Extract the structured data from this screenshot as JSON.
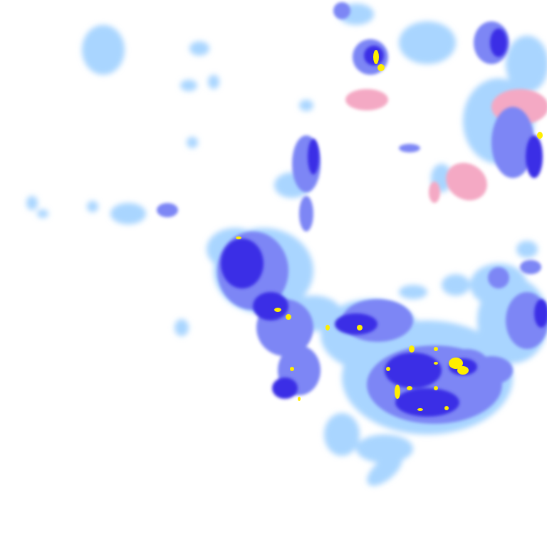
{
  "map": {
    "type": "precipitation-radar-tile",
    "colors": {
      "light_rain": "#a9d5ff",
      "moderate_rain": "#7d86f5",
      "heavy_rain": "#3a2ee6",
      "intense_rain": "#ffee00",
      "mixed_snow": "#f4a9c4",
      "background": "#ffffff"
    }
  }
}
